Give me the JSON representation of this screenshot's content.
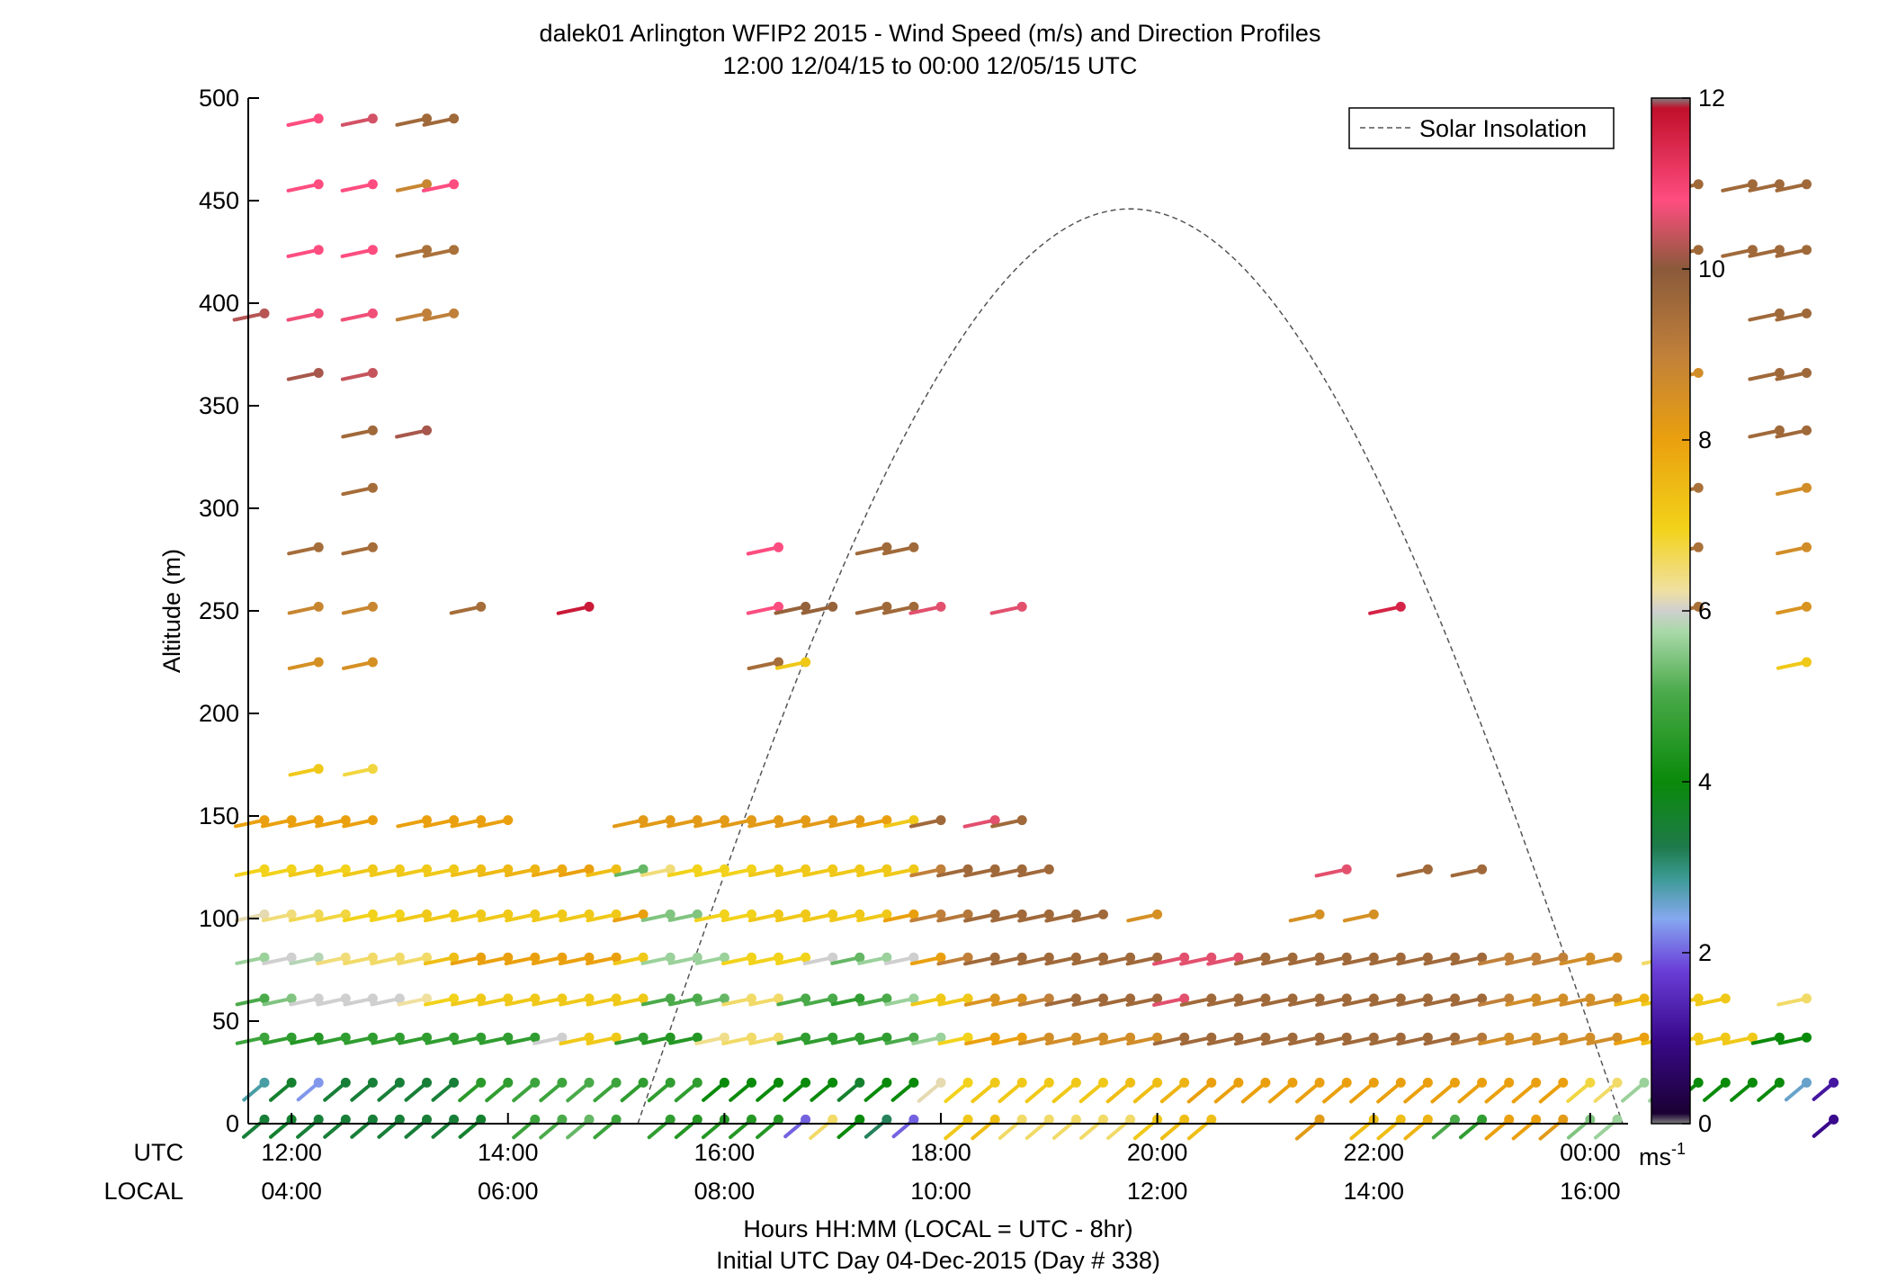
{
  "chart_data": {
    "type": "scatter",
    "title": "dalek01 Arlington WFIP2 2015 - Wind Speed (m/s) and Direction Profiles",
    "subtitle": "12:00 12/04/15 to 00:00 12/05/15  UTC",
    "ylabel": "Altitude (m)",
    "xlabel": "Hours HH:MM  (LOCAL = UTC - 8hr)",
    "xlabel2": "Initial UTC Day 04-Dec-2015 (Day # 338)",
    "x_row_labels": [
      "UTC",
      "LOCAL"
    ],
    "x_ticks_utc": [
      "12:00",
      "14:00",
      "16:00",
      "18:00",
      "20:00",
      "22:00",
      "00:00"
    ],
    "x_ticks_local": [
      "04:00",
      "06:00",
      "08:00",
      "10:00",
      "12:00",
      "14:00",
      "16:00"
    ],
    "y_ticks": [
      "0",
      "50",
      "100",
      "150",
      "200",
      "250",
      "300",
      "350",
      "400",
      "450",
      "500"
    ],
    "x_range_hours": [
      11.6,
      24.35
    ],
    "ylim": [
      0,
      500
    ],
    "legend": {
      "label": "Solar Insolation",
      "position": "top-right"
    },
    "colorbar": {
      "ticks": [
        "0",
        "2",
        "4",
        "6",
        "8",
        "10",
        "12"
      ],
      "unit_base": "ms",
      "unit_exp": "-1",
      "range": [
        0,
        12
      ]
    },
    "solar_insolation": {
      "start_hour": 15.2,
      "peak_hour": 19.75,
      "end_hour": 24.3,
      "peak_altitude": 446
    },
    "profiles": [
      {
        "heights": [
          2,
          20,
          42,
          61,
          81,
          102,
          124,
          148,
          395
        ],
        "speeds": [
          3.5,
          2.8,
          4.8,
          5.0,
          5.6,
          6.2,
          7.0,
          8.0,
          10.3
        ]
      },
      {
        "heights": [
          2,
          20,
          42,
          61,
          81,
          102,
          124,
          148
        ],
        "speeds": [
          3.6,
          3.6,
          4.6,
          5.4,
          6.0,
          6.5,
          7.0,
          8.0
        ]
      },
      {
        "heights": [
          2,
          20,
          42,
          61,
          81,
          102,
          124,
          148,
          173,
          225,
          252,
          281,
          366,
          395,
          426,
          458,
          490
        ],
        "speeds": [
          3.5,
          2.3,
          4.4,
          6.0,
          5.8,
          6.7,
          7.2,
          8.0,
          7.2,
          8.5,
          8.8,
          9.5,
          10.2,
          10.7,
          10.8,
          10.8,
          10.8
        ]
      },
      {
        "heights": [
          2,
          20,
          42,
          61,
          81,
          102,
          124,
          148
        ],
        "speeds": [
          3.5,
          3.5,
          4.6,
          6.0,
          6.5,
          6.8,
          7.0,
          8.0
        ]
      },
      {
        "heights": [
          2,
          20,
          42,
          61,
          81,
          102,
          124,
          148,
          173,
          225,
          252,
          281,
          310,
          338,
          366,
          395,
          426,
          458,
          490
        ],
        "speeds": [
          3.5,
          3.5,
          4.6,
          6.0,
          6.6,
          7.0,
          7.2,
          8.0,
          6.8,
          8.5,
          8.8,
          9.5,
          9.5,
          9.6,
          10.4,
          10.7,
          10.8,
          10.8,
          10.5
        ]
      },
      {
        "heights": [
          2,
          20,
          42,
          61,
          81,
          102,
          124
        ],
        "speeds": [
          3.5,
          3.5,
          4.6,
          6.0,
          6.6,
          7.0,
          7.2
        ]
      },
      {
        "heights": [
          2,
          20,
          42,
          61,
          81,
          102,
          124,
          148,
          338,
          395,
          426,
          458,
          490
        ],
        "speeds": [
          3.5,
          3.5,
          4.6,
          6.3,
          6.6,
          7.2,
          7.2,
          8.0,
          10.2,
          9.0,
          9.4,
          8.8,
          9.6
        ]
      },
      {
        "heights": [
          2,
          20,
          42,
          61,
          81,
          102,
          124,
          148,
          395,
          426,
          458,
          490
        ],
        "speeds": [
          3.5,
          3.5,
          4.6,
          7.0,
          7.4,
          7.2,
          7.2,
          8.0,
          9.0,
          9.4,
          10.8,
          9.6
        ]
      },
      {
        "heights": [
          2,
          20,
          42,
          61,
          81,
          102,
          124,
          148,
          252
        ],
        "speeds": [
          3.6,
          4.5,
          4.6,
          7.2,
          8.0,
          7.2,
          7.4,
          8.0,
          9.5
        ]
      },
      {
        "heights": [
          20,
          42,
          61,
          81,
          102,
          124,
          148
        ],
        "speeds": [
          4.6,
          4.6,
          7.2,
          8.0,
          7.2,
          7.5,
          8.0
        ]
      },
      {
        "heights": [
          2,
          20,
          42,
          61,
          81,
          102,
          124
        ],
        "speeds": [
          4.8,
          4.8,
          4.6,
          7.2,
          8.0,
          7.2,
          7.6
        ]
      },
      {
        "heights": [
          2,
          20,
          42,
          61,
          81,
          102,
          124
        ],
        "speeds": [
          5.0,
          4.8,
          6.0,
          7.2,
          8.0,
          7.2,
          7.8
        ]
      },
      {
        "heights": [
          2,
          20,
          42,
          61,
          81,
          102,
          124,
          252
        ],
        "speeds": [
          5.2,
          5.0,
          7.2,
          7.2,
          8.0,
          7.2,
          8.0,
          11.8
        ]
      },
      {
        "heights": [
          2,
          20,
          42,
          61,
          81,
          102,
          124
        ],
        "speeds": [
          4.8,
          4.8,
          7.2,
          7.2,
          8.0,
          7.2,
          7.4
        ]
      },
      {
        "heights": [
          20,
          42,
          61,
          81,
          102,
          124,
          148
        ],
        "speeds": [
          4.6,
          4.6,
          7.2,
          7.2,
          8.0,
          5.2,
          8.2
        ]
      },
      {
        "heights": [
          2,
          20,
          42,
          61,
          81,
          102,
          124,
          148
        ],
        "speeds": [
          4.6,
          4.6,
          4.4,
          5.0,
          5.6,
          5.4,
          6.5,
          8.2
        ]
      },
      {
        "heights": [
          2,
          20,
          42,
          61,
          81,
          102,
          124,
          148
        ],
        "speeds": [
          4.4,
          4.6,
          4.4,
          5.0,
          5.6,
          5.4,
          7.0,
          8.2
        ]
      },
      {
        "heights": [
          2,
          20,
          42,
          61,
          81,
          102,
          124,
          148
        ],
        "speeds": [
          4.4,
          4.0,
          6.4,
          5.2,
          5.6,
          7.0,
          7.0,
          8.2
        ]
      },
      {
        "heights": [
          2,
          20,
          42,
          61,
          81,
          102,
          124,
          148
        ],
        "speeds": [
          4.4,
          4.0,
          6.6,
          6.6,
          7.0,
          7.0,
          7.0,
          8.2
        ]
      },
      {
        "heights": [
          2,
          20,
          42,
          61,
          81,
          102,
          124,
          148,
          225,
          252,
          281
        ],
        "speeds": [
          4.4,
          4.0,
          6.6,
          6.6,
          7.0,
          7.2,
          7.2,
          8.2,
          9.5,
          10.8,
          10.8
        ]
      },
      {
        "heights": [
          2,
          20,
          42,
          61,
          81,
          102,
          124,
          148,
          225,
          252
        ],
        "speeds": [
          2.0,
          4.0,
          4.6,
          5.0,
          7.0,
          7.2,
          7.2,
          8.2,
          7.2,
          9.8
        ]
      },
      {
        "heights": [
          2,
          20,
          42,
          61,
          81,
          102,
          124,
          148,
          252
        ],
        "speeds": [
          6.6,
          4.0,
          4.6,
          5.0,
          6.0,
          7.2,
          7.2,
          8.2,
          9.8
        ]
      },
      {
        "heights": [
          2,
          20,
          42,
          61,
          81,
          102,
          124,
          148
        ],
        "speeds": [
          4.0,
          3.6,
          4.6,
          4.6,
          5.2,
          7.2,
          7.2,
          8.2
        ]
      },
      {
        "heights": [
          2,
          20,
          42,
          61,
          81,
          102,
          124,
          148,
          281,
          252
        ],
        "speeds": [
          3.2,
          4.0,
          4.6,
          5.0,
          5.6,
          7.2,
          7.2,
          8.0,
          9.6,
          9.6
        ]
      },
      {
        "heights": [
          2,
          20,
          42,
          61,
          81,
          102,
          124,
          148,
          281,
          252
        ],
        "speeds": [
          2.0,
          4.0,
          5.0,
          5.6,
          6.0,
          8.0,
          7.2,
          7.2,
          9.6,
          9.6
        ]
      },
      {
        "heights": [
          20,
          42,
          61,
          81,
          102,
          124,
          148,
          252
        ],
        "speeds": [
          6.2,
          5.6,
          7.2,
          8.0,
          9.0,
          9.0,
          9.6,
          10.6
        ]
      },
      {
        "heights": [
          2,
          20,
          42,
          61,
          81,
          102,
          124
        ],
        "speeds": [
          7.2,
          7.0,
          7.0,
          7.2,
          9.0,
          9.2,
          9.6
        ]
      },
      {
        "heights": [
          2,
          20,
          42,
          61,
          81,
          102,
          124,
          148
        ],
        "speeds": [
          7.4,
          7.2,
          8.0,
          8.4,
          9.6,
          9.6,
          9.6,
          10.6
        ]
      },
      {
        "heights": [
          2,
          20,
          42,
          61,
          81,
          102,
          124,
          148,
          252
        ],
        "speeds": [
          6.6,
          7.2,
          8.0,
          8.4,
          9.6,
          9.6,
          9.6,
          9.6,
          10.6
        ]
      },
      {
        "heights": [
          2,
          20,
          42,
          61,
          81,
          102,
          124
        ],
        "speeds": [
          6.6,
          7.2,
          8.6,
          9.0,
          9.6,
          9.6,
          9.6
        ]
      },
      {
        "heights": [
          2,
          20,
          42,
          61,
          81,
          102
        ],
        "speeds": [
          6.6,
          7.2,
          8.6,
          9.6,
          9.6,
          9.6
        ]
      },
      {
        "heights": [
          2,
          20,
          42,
          61,
          81,
          102
        ],
        "speeds": [
          6.6,
          7.2,
          8.6,
          9.6,
          9.6,
          9.6
        ]
      },
      {
        "heights": [
          2,
          20,
          42,
          61,
          81
        ],
        "speeds": [
          6.6,
          7.4,
          8.6,
          9.6,
          9.6
        ]
      },
      {
        "heights": [
          2,
          20,
          42,
          61,
          81,
          102
        ],
        "speeds": [
          7.2,
          7.4,
          8.6,
          9.6,
          9.6,
          8.5
        ]
      },
      {
        "heights": [
          2,
          20,
          42,
          61,
          81
        ],
        "speeds": [
          7.4,
          7.6,
          9.6,
          10.6,
          10.6
        ]
      },
      {
        "heights": [
          2,
          20,
          42,
          61,
          81
        ],
        "speeds": [
          7.4,
          8.0,
          9.6,
          9.6,
          10.6
        ]
      },
      {
        "heights": [
          20,
          42,
          61,
          81
        ],
        "speeds": [
          8.0,
          9.6,
          9.6,
          10.6
        ]
      },
      {
        "heights": [
          20,
          42,
          61,
          81
        ],
        "speeds": [
          8.0,
          9.6,
          9.6,
          9.6
        ]
      },
      {
        "heights": [
          20,
          42,
          61,
          81
        ],
        "speeds": [
          8.0,
          9.6,
          9.6,
          9.6
        ]
      },
      {
        "heights": [
          2,
          20,
          42,
          61,
          81,
          102
        ],
        "speeds": [
          8.2,
          8.0,
          9.6,
          9.6,
          9.6,
          8.5
        ]
      },
      {
        "heights": [
          20,
          42,
          61,
          81,
          124
        ],
        "speeds": [
          8.0,
          9.6,
          9.6,
          9.6,
          10.6
        ]
      },
      {
        "heights": [
          2,
          20,
          42,
          61,
          81,
          102
        ],
        "speeds": [
          7.4,
          8.0,
          9.6,
          9.6,
          9.6,
          8.5
        ]
      },
      {
        "heights": [
          2,
          20,
          42,
          61,
          81,
          252
        ],
        "speeds": [
          7.4,
          8.0,
          9.6,
          9.6,
          9.6,
          11.6
        ]
      },
      {
        "heights": [
          2,
          20,
          42,
          61,
          81,
          124
        ],
        "speeds": [
          7.6,
          8.0,
          9.6,
          9.6,
          9.6,
          9.6
        ]
      },
      {
        "heights": [
          2,
          20,
          42,
          61,
          81
        ],
        "speeds": [
          5.0,
          8.0,
          9.6,
          9.6,
          9.6
        ]
      },
      {
        "heights": [
          2,
          20,
          42,
          61,
          81,
          124
        ],
        "speeds": [
          4.6,
          8.0,
          9.2,
          9.6,
          9.6,
          9.6
        ]
      },
      {
        "heights": [
          2,
          20,
          42,
          61,
          81
        ],
        "speeds": [
          8.0,
          8.0,
          8.6,
          9.0,
          9.0
        ]
      },
      {
        "heights": [
          2,
          20,
          42,
          61,
          81
        ],
        "speeds": [
          8.0,
          8.0,
          8.6,
          8.6,
          9.0
        ]
      },
      {
        "heights": [
          2,
          20,
          42,
          61,
          81
        ],
        "speeds": [
          8.2,
          8.0,
          8.6,
          8.6,
          9.0
        ]
      },
      {
        "heights": [
          2,
          20,
          42,
          61,
          81
        ],
        "speeds": [
          5.4,
          6.8,
          8.6,
          8.6,
          8.6
        ]
      },
      {
        "heights": [
          2,
          20,
          42,
          61,
          81
        ],
        "speeds": [
          5.6,
          6.6,
          8.6,
          8.6,
          8.6
        ]
      },
      {
        "heights": [
          20,
          42,
          61
        ],
        "speeds": [
          5.6,
          8.0,
          7.6
        ]
      },
      {
        "heights": [
          20,
          42,
          61,
          81
        ],
        "speeds": [
          5.6,
          7.4,
          7.2,
          6.6
        ]
      },
      {
        "heights": [
          20,
          42,
          61,
          252,
          281,
          310,
          366,
          426,
          458
        ],
        "speeds": [
          4.0,
          7.2,
          7.2,
          9.4,
          9.4,
          9.4,
          8.6,
          9.6,
          9.6
        ]
      },
      {
        "heights": [
          20,
          42,
          61
        ],
        "speeds": [
          4.0,
          7.2,
          7.2
        ]
      },
      {
        "heights": [
          20,
          42,
          458,
          426
        ],
        "speeds": [
          4.0,
          7.2,
          9.6,
          9.6
        ]
      },
      {
        "heights": [
          20,
          42,
          338,
          366,
          395,
          426,
          458
        ],
        "speeds": [
          4.0,
          4.0,
          9.6,
          9.6,
          9.6,
          9.6,
          9.6
        ]
      },
      {
        "heights": [
          20,
          42,
          61,
          225,
          252,
          281,
          310,
          338,
          366,
          395,
          426,
          458
        ],
        "speeds": [
          2.6,
          4.0,
          6.6,
          7.2,
          8.4,
          8.6,
          8.6,
          9.6,
          9.6,
          9.6,
          9.6,
          9.6
        ]
      },
      {
        "heights": [
          2,
          20
        ],
        "speeds": [
          1.0,
          1.2
        ]
      }
    ]
  }
}
